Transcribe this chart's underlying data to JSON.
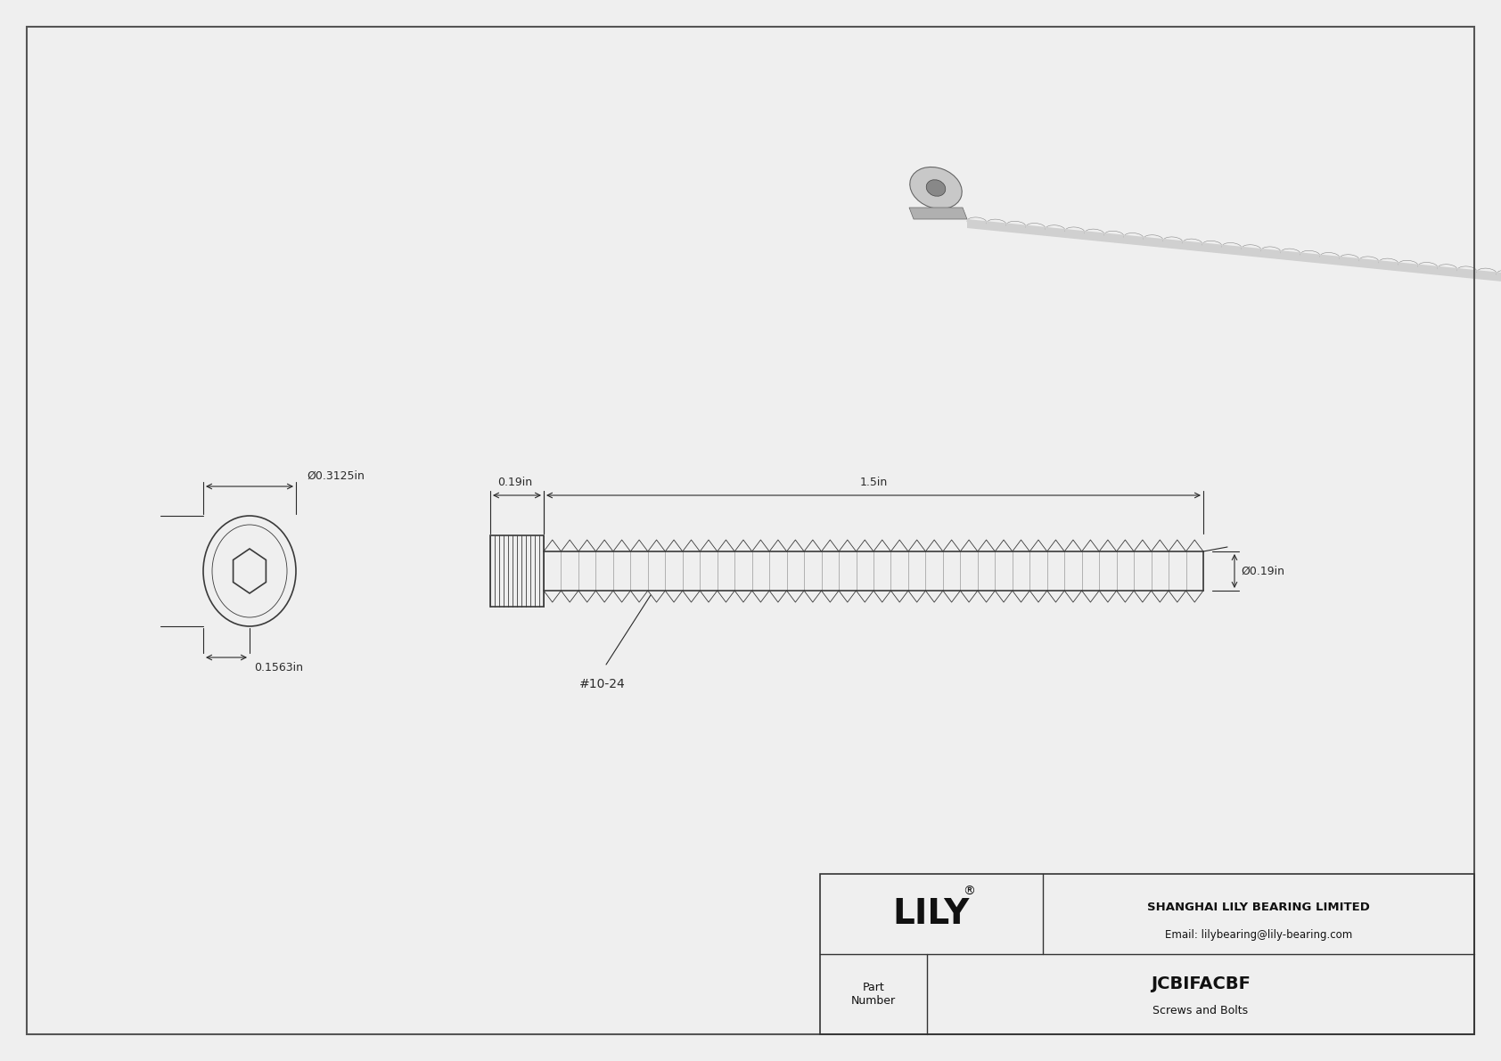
{
  "bg_color": "#f0f0f0",
  "drawing_bg": "#f5f5f5",
  "line_color": "#3a3a3a",
  "dim_color": "#2a2a2a",
  "title": "JCBIFACBF",
  "subtitle": "Screws and Bolts",
  "company": "SHANGHAI LILY BEARING LIMITED",
  "email": "Email: lilybearing@lily-bearing.com",
  "brand": "LILY",
  "part_label": "Part\nNumber",
  "dim_diameter_head": "0.3125in",
  "dim_head_height": "0.1563in",
  "dim_shank_dia": "0.19in",
  "dim_length": "1.5in",
  "thread_label": "#10-24",
  "diam_symbol": "Ø"
}
